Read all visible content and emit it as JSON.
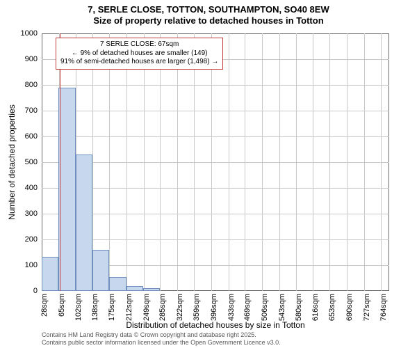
{
  "title": {
    "line1": "7, SERLE CLOSE, TOTTON, SOUTHAMPTON, SO40 8EW",
    "line2": "Size of property relative to detached houses in Totton"
  },
  "chart": {
    "type": "bar",
    "x_axis": {
      "label": "Distribution of detached houses by size in Totton",
      "domain_min": 28,
      "domain_max": 782,
      "ticks": [
        28,
        65,
        102,
        138,
        175,
        212,
        249,
        285,
        322,
        359,
        396,
        433,
        469,
        506,
        543,
        580,
        616,
        653,
        690,
        727,
        764
      ],
      "tick_suffix": "sqm",
      "label_fontsize": 12,
      "tick_fontsize": 11
    },
    "y_axis": {
      "label": "Number of detached properties",
      "ymin": 0,
      "ymax": 1000,
      "tick_step": 100,
      "label_fontsize": 12,
      "tick_fontsize": 11
    },
    "bars": {
      "bin_start": 28,
      "bin_width": 36.7,
      "values": [
        133,
        790,
        530,
        160,
        55,
        20,
        10,
        0,
        0,
        0,
        0,
        0,
        0,
        0,
        0,
        0,
        0,
        0,
        0,
        0,
        0
      ],
      "fill_color": "#c7d7ee",
      "border_color": "#6f8fbf"
    },
    "marker": {
      "x_value": 67,
      "color": "#c43a3a"
    },
    "callout": {
      "border_color": "#c43a3a",
      "background": "#ffffff",
      "lines": [
        "7 SERLE CLOSE: 67sqm",
        "← 9% of detached houses are smaller (149)",
        "91% of semi-detached houses are larger (1,498) →"
      ],
      "fontsize": 10
    },
    "grid_color": "#c8c8c8",
    "background_color": "#ffffff",
    "text_color": "#000000"
  },
  "footer": {
    "line1": "Contains HM Land Registry data © Crown copyright and database right 2025.",
    "line2": "Contains public sector information licensed under the Open Government Licence v3.0.",
    "color": "#575757",
    "fontsize": 9
  }
}
